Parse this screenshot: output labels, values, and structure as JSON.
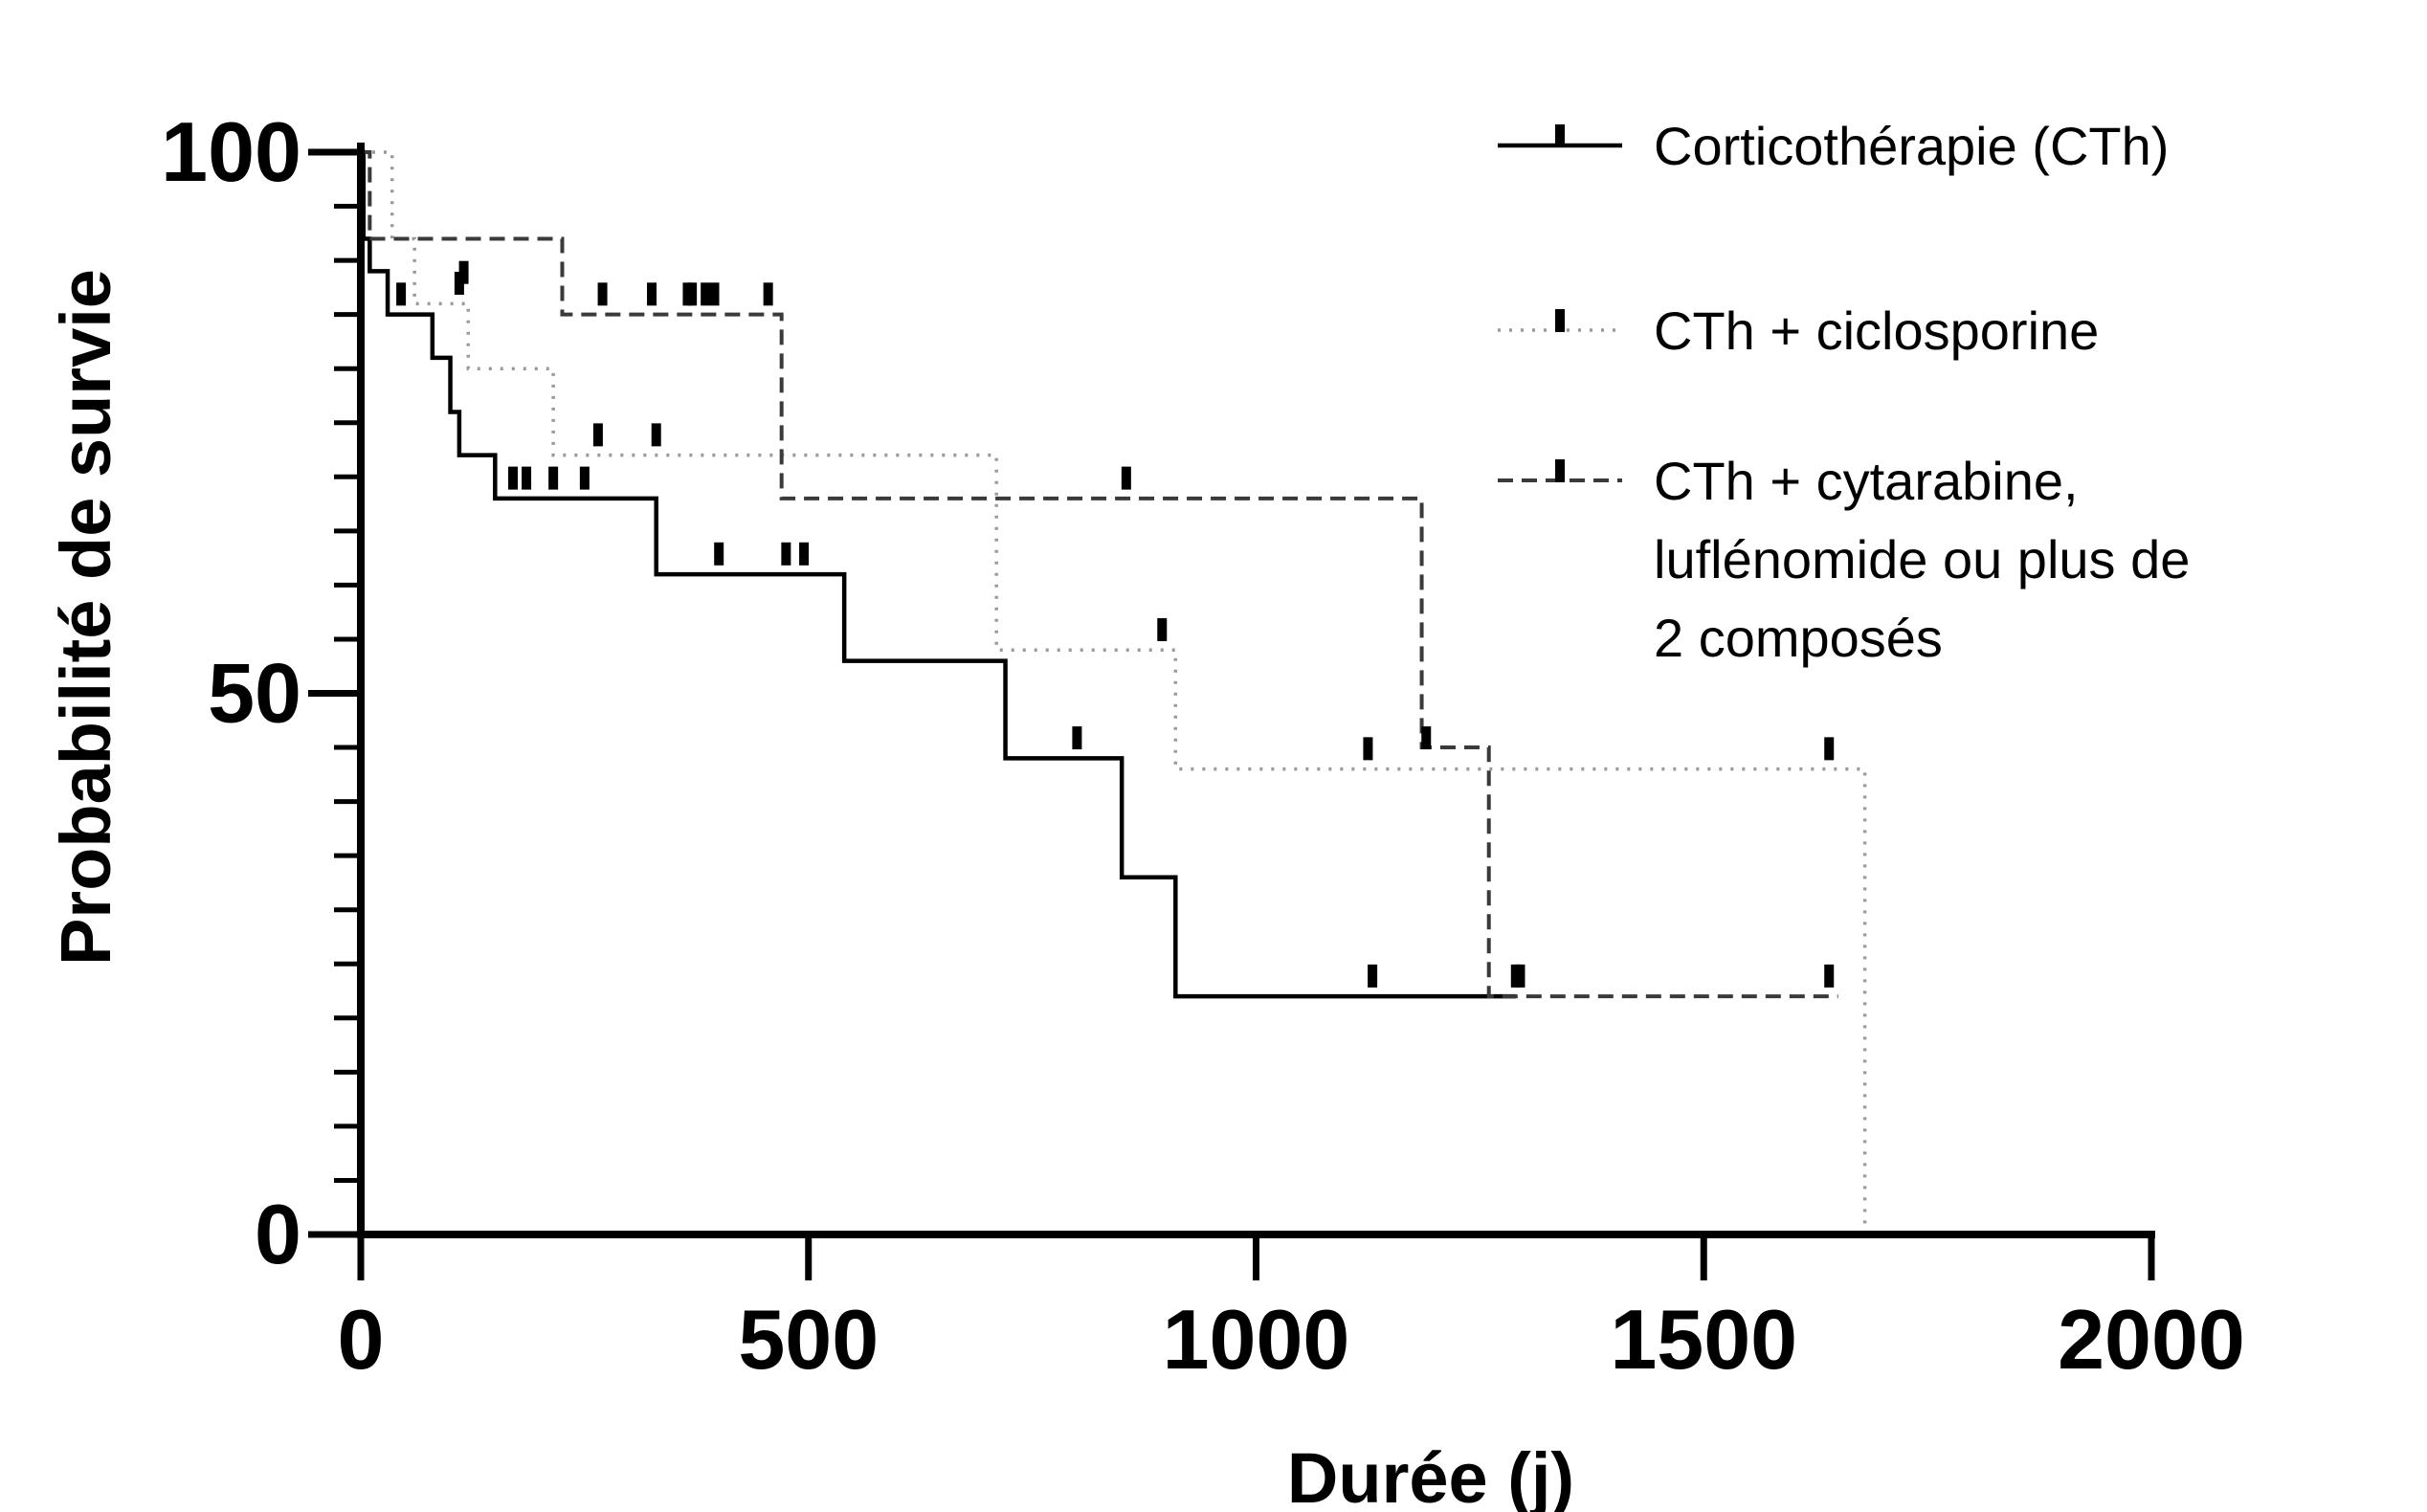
{
  "chart_data": {
    "type": "line",
    "subtype": "kaplan-meier-step",
    "xlabel": "Durée (j)",
    "ylabel": "Probabilité de survie",
    "xlim": [
      0,
      2000
    ],
    "ylim": [
      0,
      100
    ],
    "x_ticks": [
      0,
      500,
      1000,
      1500,
      2000
    ],
    "y_ticks": [
      0,
      50,
      100
    ],
    "y_minor_step": 5,
    "grid": false,
    "legend_position": "top-right",
    "series": [
      {
        "name": "Corticothérapie (CTh)",
        "style": "solid",
        "color": "#000000",
        "steps": [
          [
            0,
            100
          ],
          [
            3,
            92
          ],
          [
            10,
            89
          ],
          [
            30,
            85
          ],
          [
            80,
            81
          ],
          [
            100,
            76
          ],
          [
            110,
            72
          ],
          [
            150,
            68
          ],
          [
            330,
            61
          ],
          [
            540,
            53
          ],
          [
            720,
            44
          ],
          [
            850,
            33
          ],
          [
            910,
            22
          ],
          [
            1290,
            22
          ]
        ],
        "censored": [
          [
            45,
            86
          ],
          [
            115,
            88
          ],
          [
            170,
            69
          ],
          [
            185,
            69
          ],
          [
            215,
            69
          ],
          [
            250,
            69
          ],
          [
            400,
            62
          ],
          [
            475,
            62
          ],
          [
            495,
            62
          ],
          [
            800,
            45
          ],
          [
            1130,
            23
          ],
          [
            1290,
            23
          ]
        ]
      },
      {
        "name": "CTh + ciclosporine",
        "style": "dotted",
        "color": "#9a9a9a",
        "steps": [
          [
            0,
            100
          ],
          [
            25,
            100
          ],
          [
            35,
            92
          ],
          [
            60,
            86
          ],
          [
            120,
            80
          ],
          [
            215,
            72
          ],
          [
            710,
            54
          ],
          [
            910,
            43
          ],
          [
            1680,
            0
          ]
        ],
        "censored": [
          [
            110,
            87
          ],
          [
            265,
            73
          ],
          [
            330,
            73
          ],
          [
            895,
            55
          ],
          [
            1125,
            44
          ],
          [
            1640,
            44
          ]
        ]
      },
      {
        "name": "CTh + cytarabine, luflénomide ou plus de 2 composés",
        "legend_lines": [
          "CTh + cytarabine,",
          "luflénomide ou plus de",
          "2 composés"
        ],
        "style": "dashed",
        "color": "#3a3a3a",
        "steps": [
          [
            0,
            100
          ],
          [
            10,
            92
          ],
          [
            225,
            85
          ],
          [
            470,
            68
          ],
          [
            1185,
            45
          ],
          [
            1260,
            22
          ],
          [
            1650,
            22
          ]
        ],
        "censored": [
          [
            270,
            86
          ],
          [
            325,
            86
          ],
          [
            365,
            86
          ],
          [
            370,
            86
          ],
          [
            385,
            86
          ],
          [
            395,
            86
          ],
          [
            455,
            86
          ],
          [
            855,
            69
          ],
          [
            1190,
            45
          ],
          [
            1295,
            23
          ],
          [
            1640,
            23
          ]
        ]
      }
    ]
  }
}
